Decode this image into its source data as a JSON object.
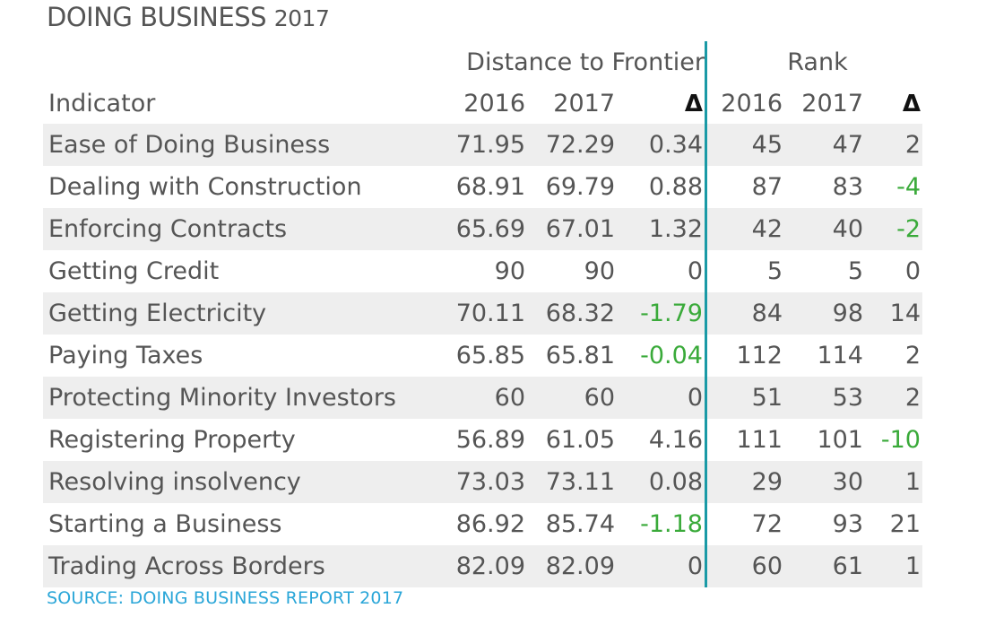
{
  "title": {
    "main": "DOING BUSINESS",
    "year": "2017"
  },
  "headers": {
    "group_dtf": "Distance to Frontier",
    "group_rank": "Rank",
    "indicator": "Indicator",
    "dtf_2016": "2016",
    "dtf_2017": "2017",
    "dtf_delta": "Δ",
    "rank_2016": "2016",
    "rank_2017": "2017",
    "rank_delta": "Δ"
  },
  "colors": {
    "accent_line": "#1a9aa6",
    "negative_delta": "#3aaa3a",
    "source": "#2aa6d8",
    "row_stripe": "#eeeeee"
  },
  "source": "SOURCE: DOING BUSINESS REPORT 2017",
  "chart_data": {
    "type": "table",
    "title": "DOING BUSINESS 2017",
    "columns": [
      "Indicator",
      "Distance to Frontier 2016",
      "Distance to Frontier 2017",
      "Distance to Frontier Δ",
      "Rank 2016",
      "Rank 2017",
      "Rank Δ"
    ],
    "rows": [
      {
        "indicator": "Ease of Doing Business",
        "dtf_2016": "71.95",
        "dtf_2017": "72.29",
        "dtf_delta": "0.34",
        "rank_2016": "45",
        "rank_2017": "47",
        "rank_delta": "2"
      },
      {
        "indicator": "Dealing with Construction",
        "dtf_2016": "68.91",
        "dtf_2017": "69.79",
        "dtf_delta": "0.88",
        "rank_2016": "87",
        "rank_2017": "83",
        "rank_delta": "-4"
      },
      {
        "indicator": "Enforcing Contracts",
        "dtf_2016": "65.69",
        "dtf_2017": "67.01",
        "dtf_delta": "1.32",
        "rank_2016": "42",
        "rank_2017": "40",
        "rank_delta": "-2"
      },
      {
        "indicator": "Getting Credit",
        "dtf_2016": "90",
        "dtf_2017": "90",
        "dtf_delta": "0",
        "rank_2016": "5",
        "rank_2017": "5",
        "rank_delta": "0"
      },
      {
        "indicator": "Getting Electricity",
        "dtf_2016": "70.11",
        "dtf_2017": "68.32",
        "dtf_delta": "-1.79",
        "rank_2016": "84",
        "rank_2017": "98",
        "rank_delta": "14"
      },
      {
        "indicator": "Paying Taxes",
        "dtf_2016": "65.85",
        "dtf_2017": "65.81",
        "dtf_delta": "-0.04",
        "rank_2016": "112",
        "rank_2017": "114",
        "rank_delta": "2"
      },
      {
        "indicator": "Protecting Minority Investors",
        "dtf_2016": "60",
        "dtf_2017": "60",
        "dtf_delta": "0",
        "rank_2016": "51",
        "rank_2017": "53",
        "rank_delta": "2"
      },
      {
        "indicator": "Registering Property",
        "dtf_2016": "56.89",
        "dtf_2017": "61.05",
        "dtf_delta": "4.16",
        "rank_2016": "111",
        "rank_2017": "101",
        "rank_delta": "-10"
      },
      {
        "indicator": "Resolving insolvency",
        "dtf_2016": "73.03",
        "dtf_2017": "73.11",
        "dtf_delta": "0.08",
        "rank_2016": "29",
        "rank_2017": "30",
        "rank_delta": "1"
      },
      {
        "indicator": "Starting a Business",
        "dtf_2016": "86.92",
        "dtf_2017": "85.74",
        "dtf_delta": "-1.18",
        "rank_2016": "72",
        "rank_2017": "93",
        "rank_delta": "21"
      },
      {
        "indicator": "Trading Across Borders",
        "dtf_2016": "82.09",
        "dtf_2017": "82.09",
        "dtf_delta": "0",
        "rank_2016": "60",
        "rank_2017": "61",
        "rank_delta": "1"
      }
    ]
  }
}
